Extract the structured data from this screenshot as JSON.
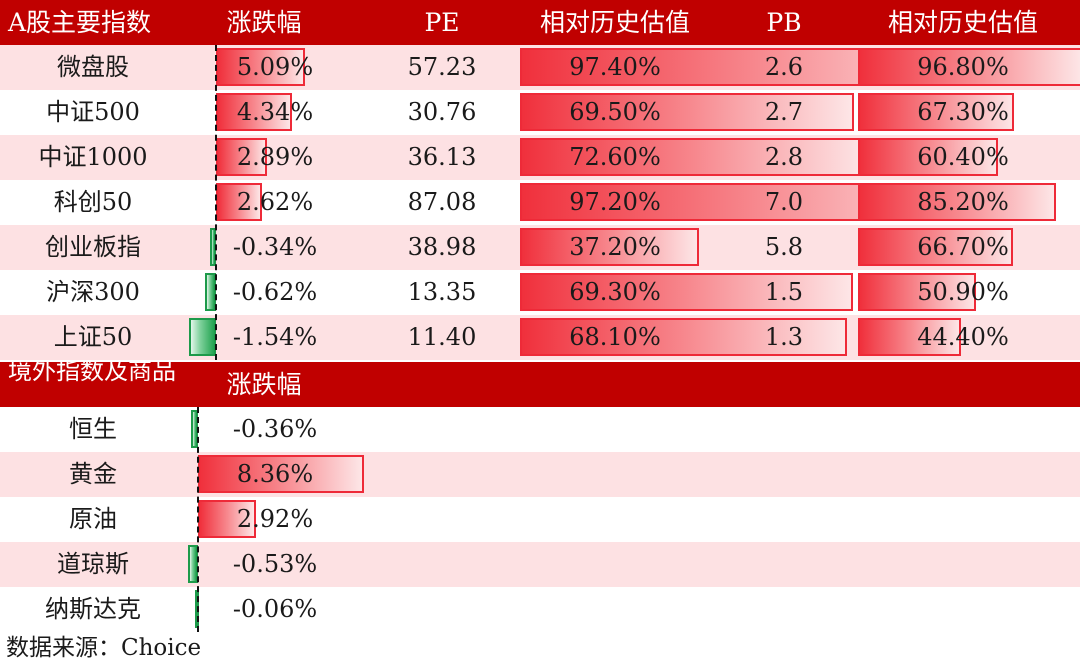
{
  "section_a": {
    "headers": [
      "A股主要指数",
      "涨跌幅",
      "PE",
      "相对历史估值",
      "PB",
      "相对历史估值"
    ],
    "rows": [
      {
        "name": "微盘股",
        "change": "5.09%",
        "change_value": 5.09,
        "pe": "57.23",
        "pe_pct": "97.40%",
        "pe_pct_value": 97.4,
        "pb": "2.6",
        "pb_pct": "96.80%",
        "pb_pct_value": 96.8
      },
      {
        "name": "中证500",
        "change": "4.34%",
        "change_value": 4.34,
        "pe": "30.76",
        "pe_pct": "69.50%",
        "pe_pct_value": 69.5,
        "pb": "2.7",
        "pb_pct": "67.30%",
        "pb_pct_value": 67.3
      },
      {
        "name": "中证1000",
        "change": "2.89%",
        "change_value": 2.89,
        "pe": "36.13",
        "pe_pct": "72.60%",
        "pe_pct_value": 72.6,
        "pb": "2.8",
        "pb_pct": "60.40%",
        "pb_pct_value": 60.4
      },
      {
        "name": "科创50",
        "change": "2.62%",
        "change_value": 2.62,
        "pe": "87.08",
        "pe_pct": "97.20%",
        "pe_pct_value": 97.2,
        "pb": "7.0",
        "pb_pct": "85.20%",
        "pb_pct_value": 85.2
      },
      {
        "name": "创业板指",
        "change": "-0.34%",
        "change_value": -0.34,
        "pe": "38.98",
        "pe_pct": "37.20%",
        "pe_pct_value": 37.2,
        "pb": "5.8",
        "pb_pct": "66.70%",
        "pb_pct_value": 66.7
      },
      {
        "name": "沪深300",
        "change": "-0.62%",
        "change_value": -0.62,
        "pe": "13.35",
        "pe_pct": "69.30%",
        "pe_pct_value": 69.3,
        "pb": "1.5",
        "pb_pct": "50.90%",
        "pb_pct_value": 50.9
      },
      {
        "name": "上证50",
        "change": "-1.54%",
        "change_value": -1.54,
        "pe": "11.40",
        "pe_pct": "68.10%",
        "pe_pct_value": 68.1,
        "pb": "1.3",
        "pb_pct": "44.40%",
        "pb_pct_value": 44.4
      }
    ]
  },
  "section_b": {
    "headers": [
      "境外指数及商品",
      "涨跌幅"
    ],
    "rows": [
      {
        "name": "恒生",
        "change": "-0.36%",
        "change_value": -0.36
      },
      {
        "name": "黄金",
        "change": "8.36%",
        "change_value": 8.36
      },
      {
        "name": "原油",
        "change": "2.92%",
        "change_value": 2.92
      },
      {
        "name": "道琼斯",
        "change": "-0.53%",
        "change_value": -0.53
      },
      {
        "name": "纳斯达克",
        "change": "-0.06%",
        "change_value": -0.06
      }
    ]
  },
  "source": "数据来源：Choice",
  "colors": {
    "header_bg": "#c00000",
    "row_alt": "#fde1e3",
    "positive_bar": "#f0303c",
    "negative_bar": "#22a350"
  }
}
